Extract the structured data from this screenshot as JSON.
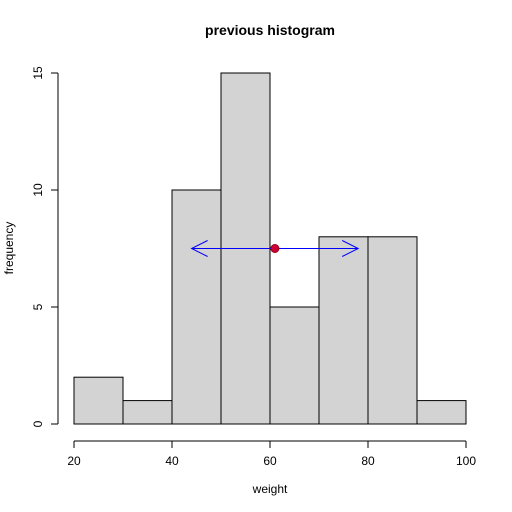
{
  "chart_data": {
    "type": "bar",
    "title": "previous histogram",
    "xlabel": "weight",
    "ylabel": "frequency",
    "bins": [
      {
        "from": 20,
        "to": 30,
        "count": 2
      },
      {
        "from": 30,
        "to": 40,
        "count": 1
      },
      {
        "from": 40,
        "to": 50,
        "count": 10
      },
      {
        "from": 50,
        "to": 60,
        "count": 15
      },
      {
        "from": 60,
        "to": 70,
        "count": 5
      },
      {
        "from": 70,
        "to": 80,
        "count": 8
      },
      {
        "from": 80,
        "to": 90,
        "count": 8
      },
      {
        "from": 90,
        "to": 100,
        "count": 1
      }
    ],
    "xlim": [
      20,
      100
    ],
    "ylim": [
      0,
      15
    ],
    "x_ticks": [
      20,
      40,
      60,
      80,
      100
    ],
    "y_ticks": [
      0,
      5,
      10,
      15
    ],
    "bar_color": "#d3d3d3",
    "bar_border_color": "#000000",
    "annotations": {
      "mean_point": {
        "x": 61,
        "y": 7.5,
        "color": "#cc0033"
      },
      "spread_arrow": {
        "x_from": 44,
        "x_to": 78,
        "y": 7.5,
        "color": "#0000ff"
      }
    },
    "grid": false,
    "legend": "none"
  }
}
